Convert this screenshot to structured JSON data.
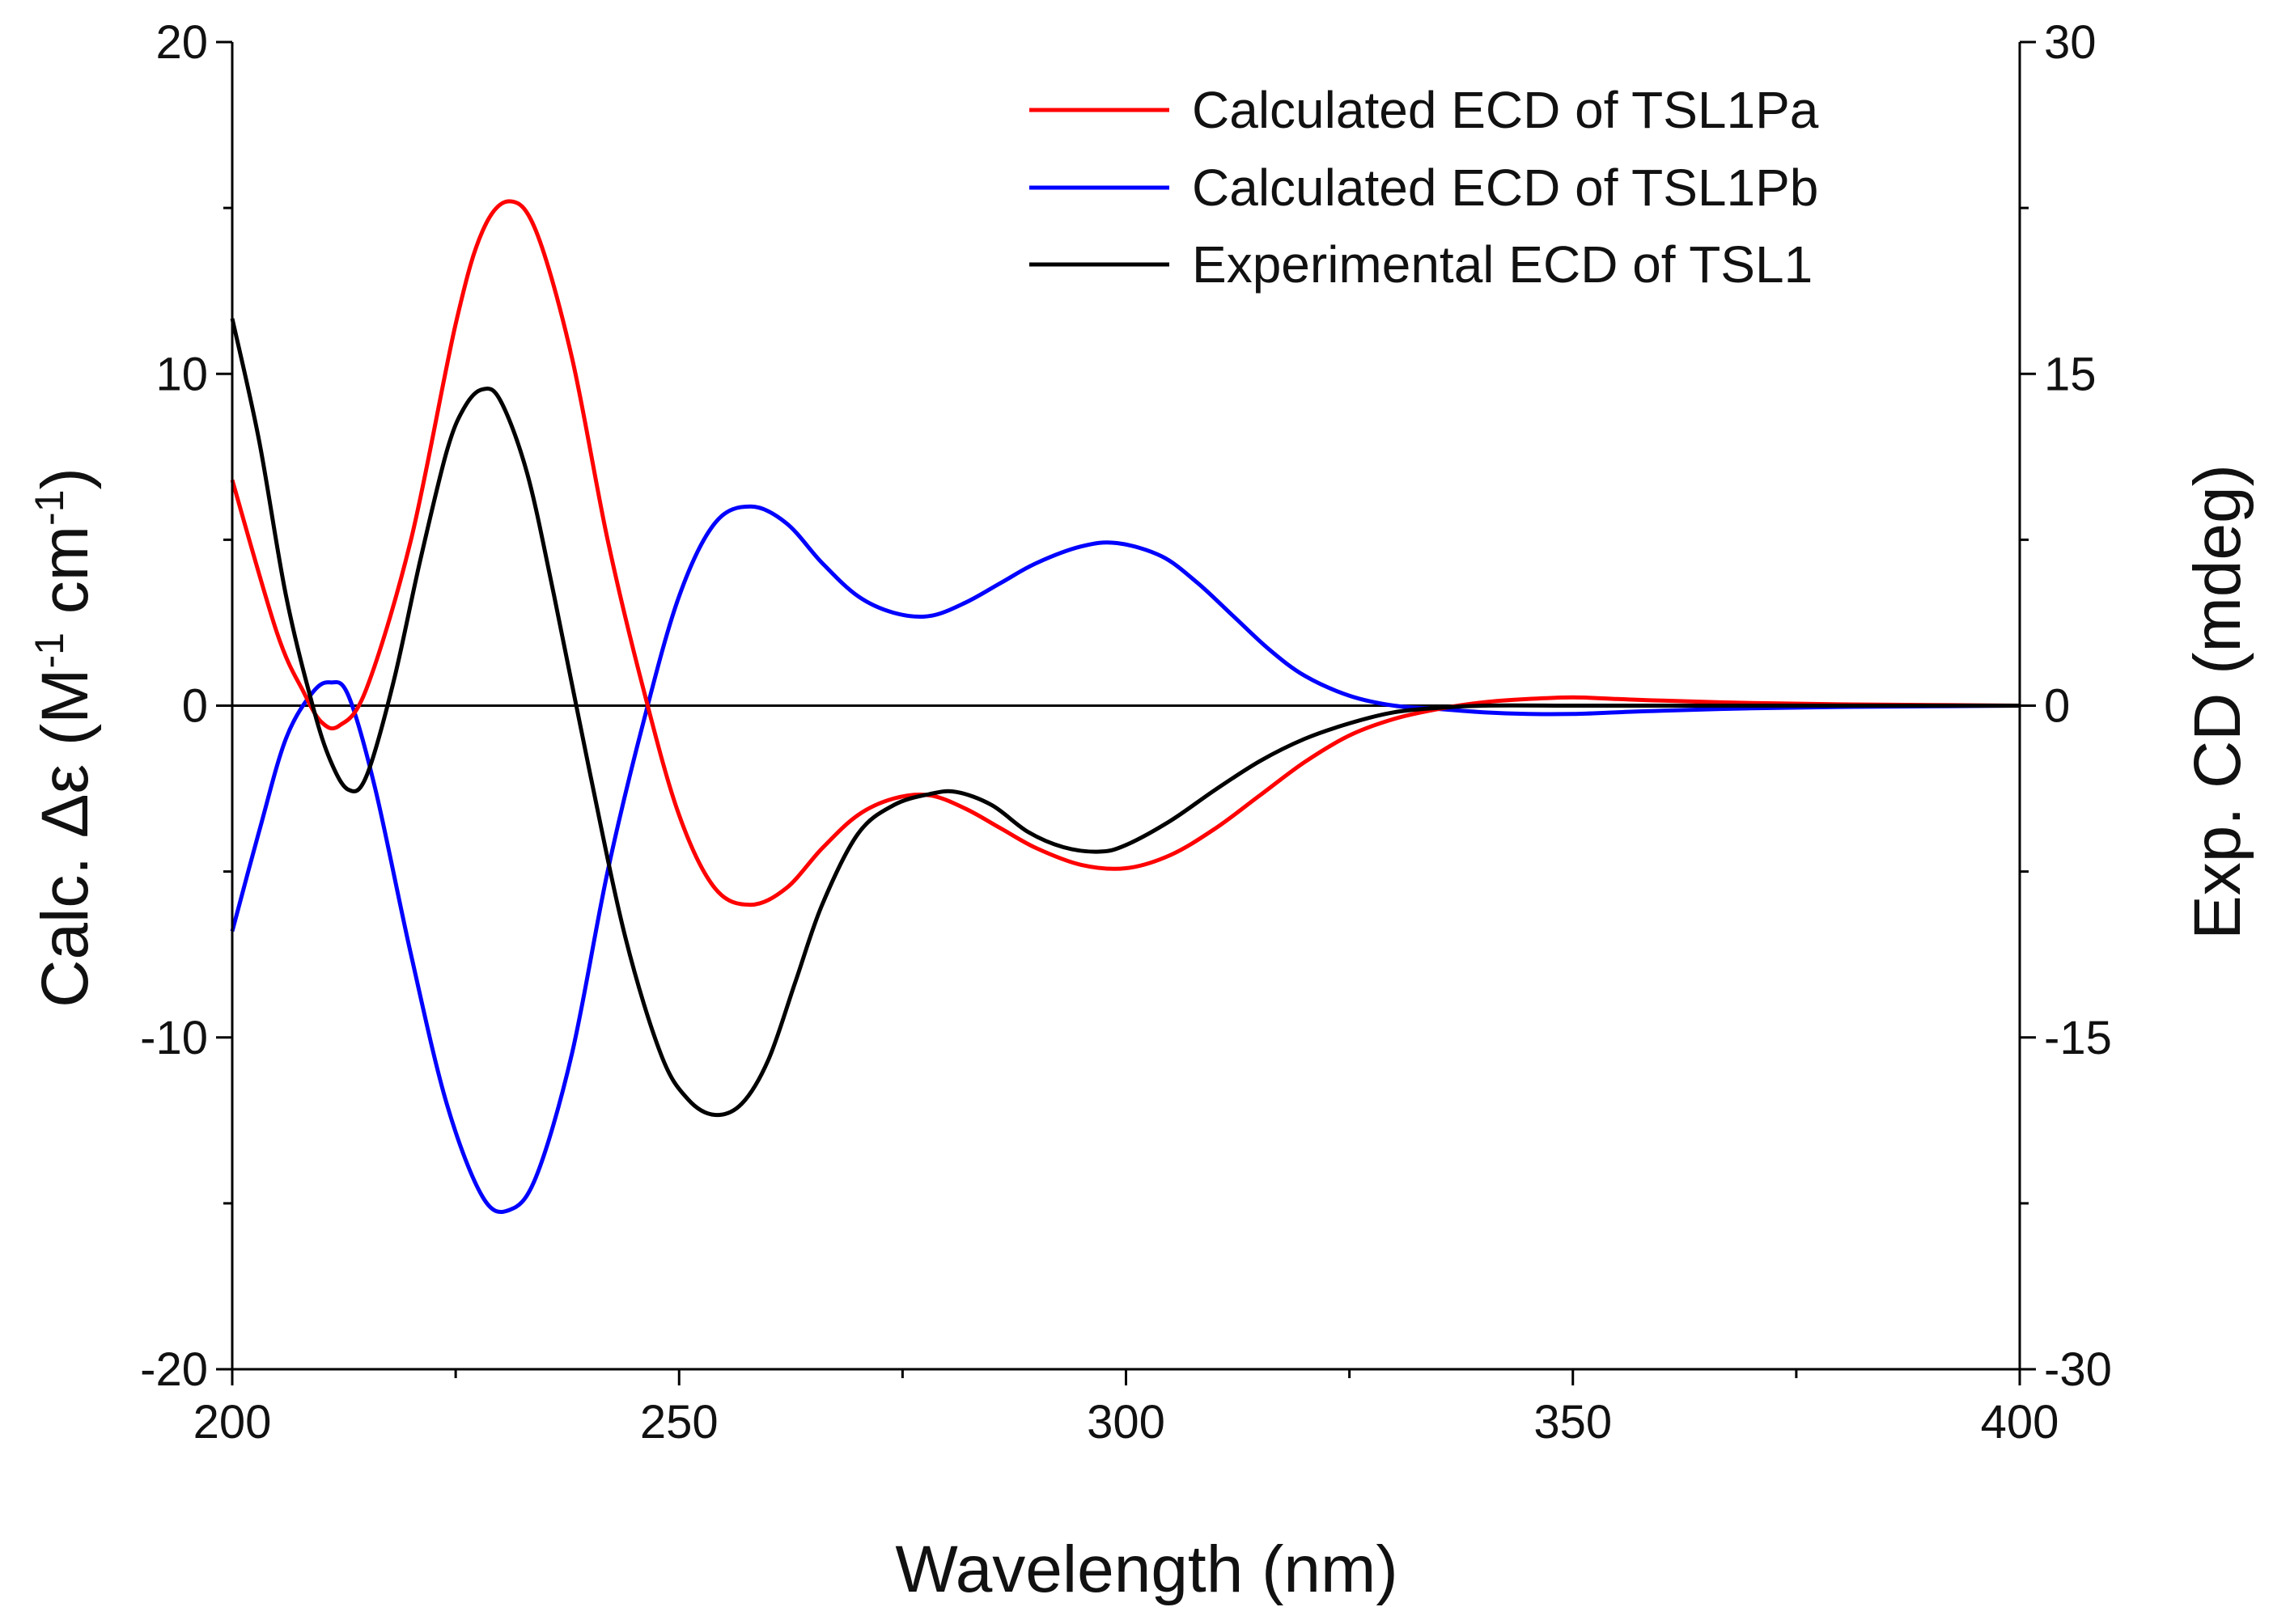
{
  "chart_data": {
    "type": "line",
    "title": "",
    "xlabel": "Wavelength (nm)",
    "ylabel_left": {
      "prefix": "Calc. Δε (M",
      "sup1": "-1",
      "mid": " cm",
      "sup2": "-1",
      "suffix": ")"
    },
    "ylabel_right": "Exp. CD (mdeg)",
    "xlim": [
      200,
      400
    ],
    "ylim_left": [
      -20,
      20
    ],
    "ylim_right": [
      -30,
      30
    ],
    "x_ticks": [
      200,
      250,
      300,
      350,
      400
    ],
    "x_tick_labels": [
      "200",
      "250",
      "300",
      "350",
      "400"
    ],
    "y_left_ticks": [
      -20,
      -10,
      0,
      10,
      20
    ],
    "y_left_tick_labels": [
      "-20",
      "-10",
      "0",
      "10",
      "20"
    ],
    "y_right_ticks": [
      -30,
      -15,
      0,
      15,
      30
    ],
    "y_right_tick_labels": [
      "-30",
      "-15",
      "0",
      "15",
      "30"
    ],
    "legend_position": "top-right",
    "series": [
      {
        "name": "Calculated ECD of TSL1Pa",
        "color": "#ff0000",
        "axis": "left",
        "x": [
          200,
          205,
          208,
          210,
          212,
          215,
          220,
          225,
          228,
          231,
          234,
          238,
          242,
          246,
          250,
          254,
          258,
          262,
          266,
          270,
          274,
          278,
          282,
          286,
          290,
          295,
          300,
          305,
          310,
          315,
          320,
          325,
          330,
          335,
          340,
          345,
          350,
          355,
          360,
          370,
          380,
          390,
          400
        ],
        "y": [
          6.8,
          2.2,
          0.4,
          -0.5,
          -0.6,
          0.5,
          5.0,
          11.5,
          14.3,
          15.2,
          14.3,
          10.5,
          5.0,
          0.5,
          -3.3,
          -5.5,
          -6.0,
          -5.5,
          -4.3,
          -3.3,
          -2.8,
          -2.7,
          -3.1,
          -3.7,
          -4.3,
          -4.8,
          -4.9,
          -4.5,
          -3.7,
          -2.7,
          -1.7,
          -0.9,
          -0.4,
          -0.1,
          0.1,
          0.2,
          0.25,
          0.2,
          0.15,
          0.08,
          0.04,
          0.02,
          0.0
        ]
      },
      {
        "name": "Calculated ECD of TSL1Pb",
        "color": "#0000ff",
        "axis": "left",
        "x": [
          200,
          203,
          206,
          209,
          211,
          213,
          216,
          220,
          224,
          228,
          231,
          234,
          238,
          242,
          246,
          250,
          254,
          258,
          262,
          266,
          270,
          274,
          278,
          282,
          286,
          290,
          295,
          299,
          304,
          308,
          312,
          316,
          320,
          325,
          330,
          335,
          340,
          345,
          350,
          355,
          360,
          370,
          380,
          390,
          400
        ],
        "y": [
          -6.8,
          -3.8,
          -1.0,
          0.4,
          0.7,
          0.3,
          -2.5,
          -7.5,
          -12.0,
          -14.8,
          -15.2,
          -14.2,
          -10.5,
          -5.0,
          -0.5,
          3.3,
          5.5,
          6.0,
          5.5,
          4.3,
          3.3,
          2.8,
          2.7,
          3.1,
          3.7,
          4.3,
          4.8,
          4.9,
          4.5,
          3.7,
          2.7,
          1.7,
          0.9,
          0.3,
          0.0,
          -0.1,
          -0.2,
          -0.25,
          -0.25,
          -0.2,
          -0.15,
          -0.08,
          -0.04,
          -0.02,
          0.0
        ]
      },
      {
        "name": "Experimental ECD of TSL1",
        "color": "#000000",
        "axis": "right",
        "x": [
          200,
          203,
          206,
          209,
          211,
          213,
          215,
          218,
          221,
          224,
          226,
          228,
          230,
          233,
          236,
          240,
          244,
          248,
          251,
          254,
          257,
          260,
          263,
          266,
          270,
          274,
          278,
          281,
          285,
          289,
          293,
          297,
          300,
          305,
          310,
          315,
          320,
          325,
          330,
          335,
          340,
          350,
          360,
          380,
          400
        ],
        "y": [
          17.5,
          12.0,
          5.0,
          0.0,
          -2.5,
          -3.8,
          -3.2,
          1.0,
          6.5,
          11.5,
          13.5,
          14.3,
          13.8,
          10.5,
          5.0,
          -3.0,
          -10.5,
          -15.8,
          -17.8,
          -18.5,
          -18.0,
          -16.0,
          -12.5,
          -9.0,
          -5.8,
          -4.5,
          -4.0,
          -3.9,
          -4.5,
          -5.7,
          -6.4,
          -6.6,
          -6.3,
          -5.2,
          -3.8,
          -2.5,
          -1.5,
          -0.8,
          -0.3,
          -0.1,
          0.0,
          0.0,
          0.0,
          0.0,
          0.0
        ]
      }
    ]
  }
}
